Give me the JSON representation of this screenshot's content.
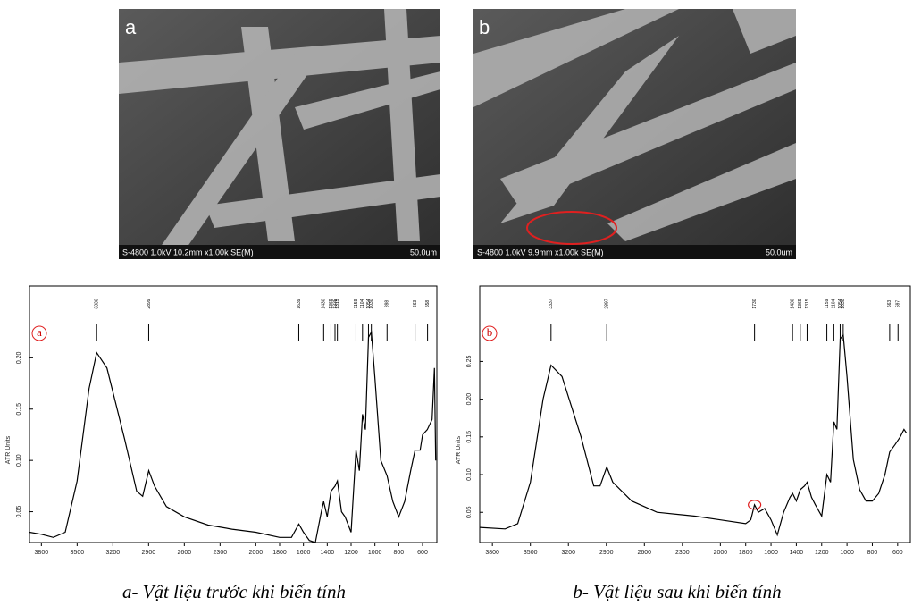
{
  "sem_images": [
    {
      "label": "a",
      "info": "S-4800 1.0kV 10.2mm x1.00k SE(M)",
      "scale": "50.0um"
    },
    {
      "label": "b",
      "info": "S-4800 1.0kV 9.9mm x1.00k SE(M)",
      "scale": "50.0um"
    }
  ],
  "chart_data": [
    {
      "type": "line",
      "label": "a",
      "ylabel": "ATR Units",
      "color": "#000000",
      "x": [
        3900,
        3800,
        3700,
        3600,
        3500,
        3400,
        3336,
        3250,
        3100,
        3000,
        2950,
        2899,
        2850,
        2750,
        2600,
        2400,
        2200,
        2000,
        1800,
        1700,
        1639,
        1600,
        1550,
        1500,
        1450,
        1430,
        1400,
        1369,
        1335,
        1315,
        1280,
        1250,
        1200,
        1159,
        1130,
        1104,
        1080,
        1054,
        1030,
        1000,
        950,
        898,
        850,
        800,
        750,
        700,
        663,
        620,
        600,
        560,
        520,
        500,
        490
      ],
      "values": [
        0.03,
        0.028,
        0.025,
        0.03,
        0.08,
        0.17,
        0.205,
        0.19,
        0.12,
        0.07,
        0.065,
        0.09,
        0.075,
        0.055,
        0.045,
        0.037,
        0.033,
        0.03,
        0.025,
        0.025,
        0.038,
        0.03,
        0.022,
        0.02,
        0.05,
        0.06,
        0.045,
        0.07,
        0.075,
        0.08,
        0.05,
        0.045,
        0.03,
        0.11,
        0.09,
        0.145,
        0.13,
        0.22,
        0.225,
        0.18,
        0.1,
        0.085,
        0.06,
        0.045,
        0.06,
        0.09,
        0.11,
        0.11,
        0.125,
        0.13,
        0.14,
        0.19,
        0.1
      ],
      "xlim": [
        3900,
        480
      ],
      "xticks": [
        3800,
        3500,
        3200,
        2900,
        2600,
        2300,
        2000,
        1800,
        1600,
        1400,
        1200,
        1000,
        800,
        600
      ],
      "ylim": [
        0.02,
        0.27
      ],
      "yticks": [
        0.05,
        {
          "value": 0.1,
          "label": "0.10"
        },
        0.15,
        {
          "value": 0.2,
          "label": "0.20"
        }
      ],
      "peaks": [
        3336,
        2899,
        1639,
        1430,
        1369,
        1335,
        1315,
        1159,
        1104,
        1054,
        1030,
        898,
        663,
        558
      ]
    },
    {
      "type": "line",
      "label": "b",
      "ylabel": "ATR Units",
      "color": "#000000",
      "x": [
        3900,
        3700,
        3600,
        3500,
        3400,
        3337,
        3250,
        3100,
        3000,
        2950,
        2897,
        2850,
        2700,
        2500,
        2200,
        2000,
        1800,
        1760,
        1730,
        1700,
        1650,
        1600,
        1550,
        1500,
        1450,
        1430,
        1400,
        1369,
        1335,
        1315,
        1280,
        1250,
        1200,
        1159,
        1130,
        1104,
        1080,
        1054,
        1030,
        1000,
        950,
        900,
        850,
        800,
        750,
        700,
        663,
        620,
        580,
        550,
        530
      ],
      "values": [
        0.03,
        0.028,
        0.035,
        0.09,
        0.2,
        0.245,
        0.23,
        0.15,
        0.085,
        0.085,
        0.11,
        0.09,
        0.065,
        0.05,
        0.045,
        0.04,
        0.035,
        0.04,
        0.06,
        0.05,
        0.055,
        0.04,
        0.02,
        0.05,
        0.07,
        0.075,
        0.065,
        0.08,
        0.085,
        0.09,
        0.07,
        0.06,
        0.045,
        0.1,
        0.09,
        0.17,
        0.16,
        0.28,
        0.285,
        0.23,
        0.12,
        0.08,
        0.065,
        0.065,
        0.075,
        0.1,
        0.13,
        0.14,
        0.15,
        0.16,
        0.155
      ],
      "xlim": [
        3900,
        500
      ],
      "xticks": [
        3800,
        3500,
        3200,
        2900,
        2600,
        2300,
        2000,
        1800,
        1600,
        1400,
        1200,
        1000,
        800,
        600
      ],
      "ylim": [
        0.01,
        0.35
      ],
      "yticks": [
        0.05,
        {
          "value": 0.1,
          "label": "0.10"
        },
        0.15,
        {
          "value": 0.2,
          "label": "0.20"
        },
        0.25
      ],
      "peaks": [
        3337,
        2897,
        1730,
        1430,
        1369,
        1315,
        1159,
        1104,
        1054,
        1030,
        663,
        597
      ],
      "highlight_x": 1730
    }
  ],
  "captions": [
    "a- Vật liệu trước khi biến tính",
    "b- Vật liệu sau khi biến tính"
  ]
}
